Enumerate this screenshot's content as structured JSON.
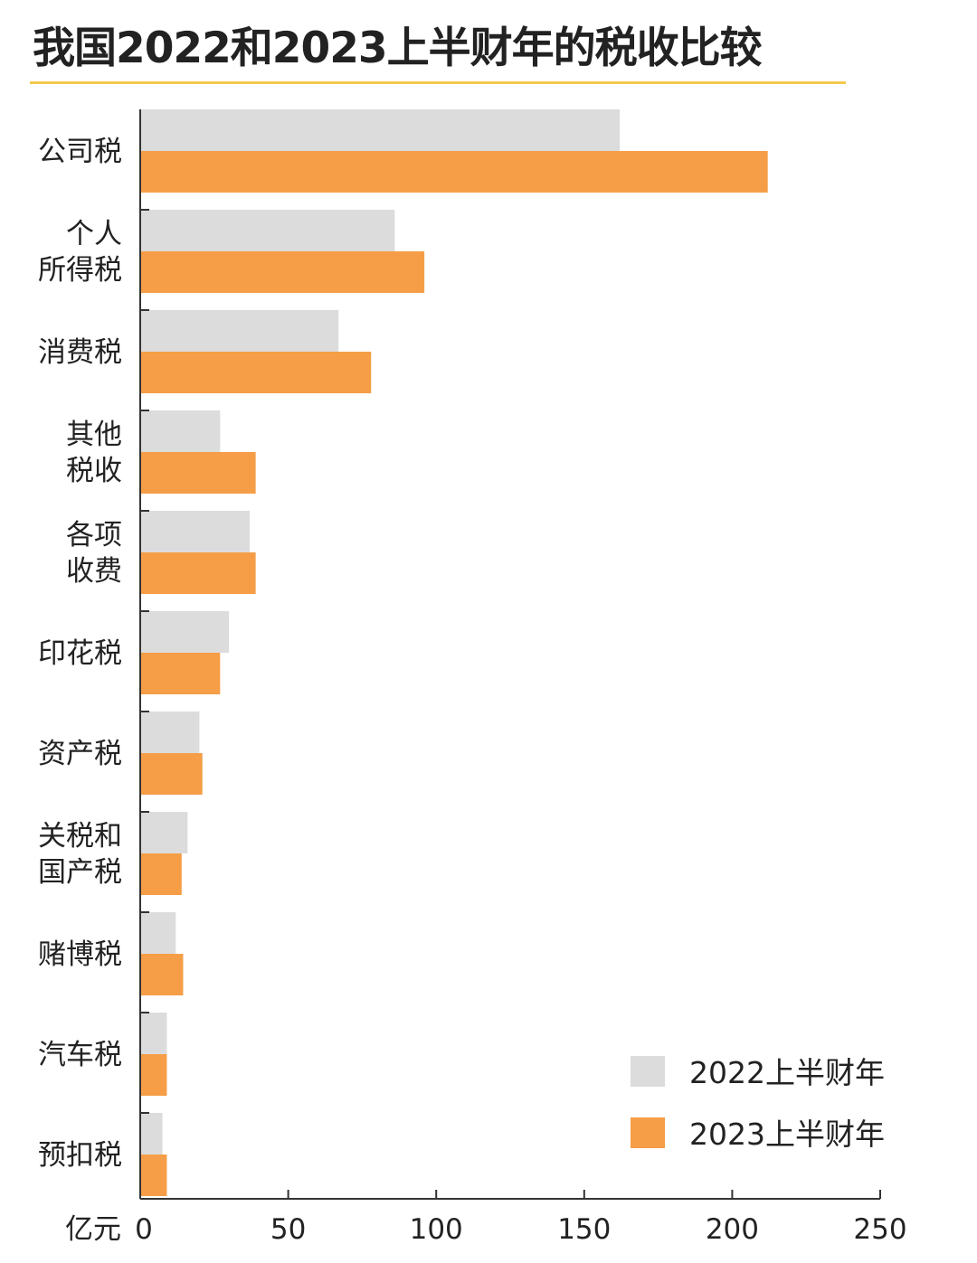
{
  "chart_data": {
    "type": "bar",
    "orientation": "horizontal",
    "title": "我国2022和2023上半财年的税收比较",
    "unit_label": "亿元",
    "categories": [
      [
        "公司税"
      ],
      [
        "个人",
        "所得税"
      ],
      [
        "消费税"
      ],
      [
        "其他",
        "税收"
      ],
      [
        "各项",
        "收费"
      ],
      [
        "印花税"
      ],
      [
        "资产税"
      ],
      [
        "关税和",
        "国产税"
      ],
      [
        "赌博税"
      ],
      [
        "汽车税"
      ],
      [
        "预扣税"
      ]
    ],
    "series": [
      {
        "name": "2022上半财年",
        "color": "#dcdcdc",
        "values": [
          162,
          86,
          67,
          27,
          37,
          30,
          20,
          16,
          12,
          9,
          7.5
        ]
      },
      {
        "name": "2023上半财年",
        "color": "#f59e47",
        "values": [
          212,
          96,
          78,
          39,
          39,
          27,
          21,
          14,
          14.5,
          9,
          9
        ]
      }
    ],
    "xlim": [
      0,
      250
    ],
    "xticks": [
      0,
      50,
      100,
      150,
      200,
      250
    ],
    "legend_position": "bottom-right",
    "grid": false
  },
  "colors": {
    "title_rule": "#f5c84a",
    "axis": "#333333",
    "text": "#222222"
  }
}
